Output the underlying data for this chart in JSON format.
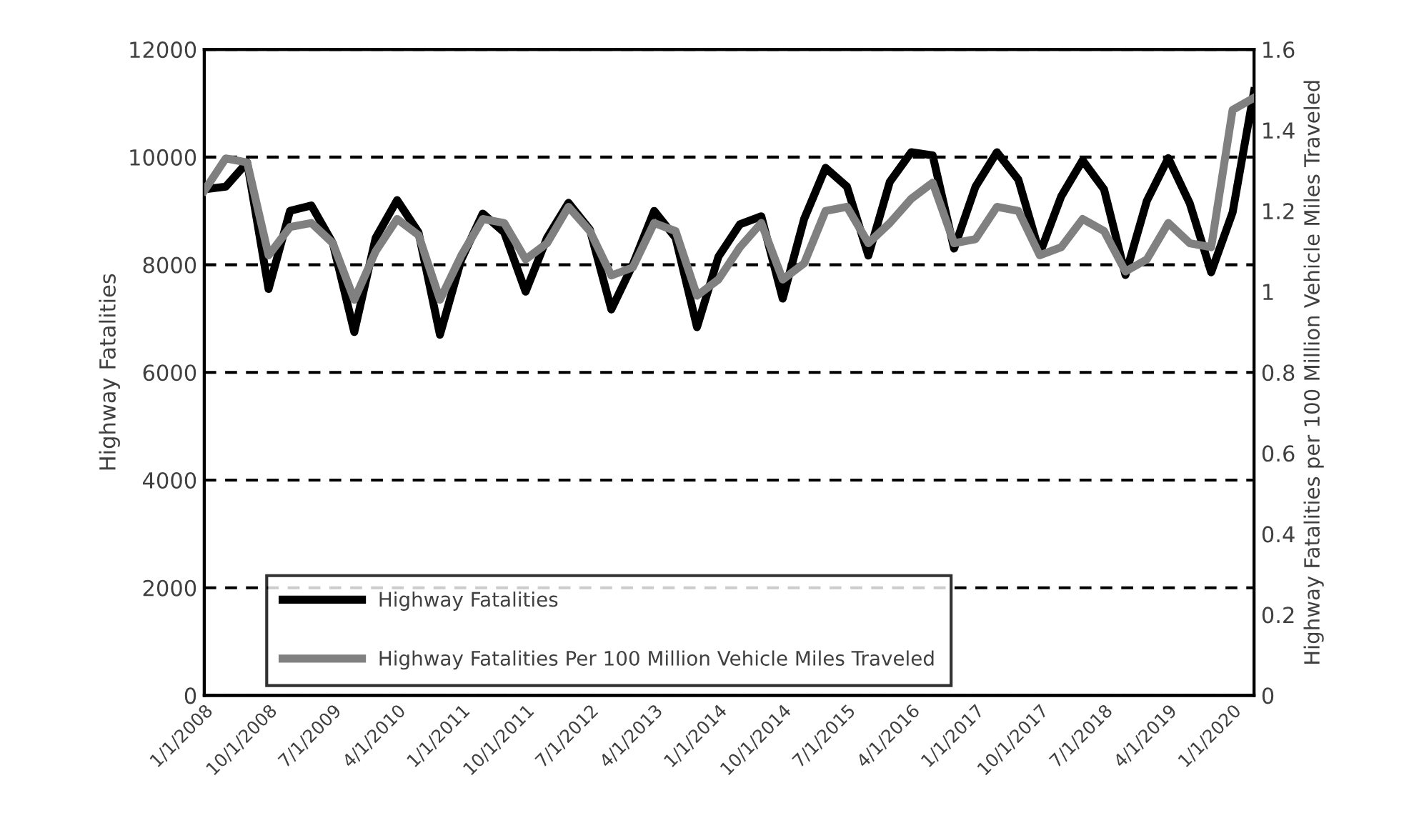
{
  "chart_data": {
    "type": "line",
    "categories": [
      "1/1/2008",
      null,
      null,
      "10/1/2008",
      null,
      null,
      "7/1/2009",
      null,
      null,
      "4/1/2010",
      null,
      null,
      "1/1/2011",
      null,
      null,
      "10/1/2011",
      null,
      null,
      "7/1/2012",
      null,
      null,
      "4/1/2013",
      null,
      null,
      "1/1/2014",
      null,
      null,
      "10/1/2014",
      null,
      null,
      "7/1/2015",
      null,
      null,
      "4/1/2016",
      null,
      null,
      "1/1/2017",
      null,
      null,
      "10/1/2017",
      null,
      null,
      "7/1/2018",
      null,
      null,
      "4/1/2019",
      null,
      null,
      "1/1/2020",
      null
    ],
    "series": [
      {
        "name": "Highway Fatalities",
        "color": "#000000",
        "values": [
          9400,
          9450,
          9900,
          7550,
          9000,
          9100,
          8400,
          6750,
          8500,
          9200,
          8600,
          6700,
          8100,
          8950,
          8600,
          7500,
          8500,
          9150,
          8650,
          7170,
          8000,
          9000,
          8500,
          6840,
          8150,
          8750,
          8900,
          7370,
          8850,
          9800,
          9450,
          8170,
          9540,
          10090,
          10030,
          8300,
          9450,
          10090,
          9580,
          8210,
          9270,
          9940,
          9400,
          7810,
          9190,
          9980,
          9140,
          7860,
          8970,
          11220
        ]
      },
      {
        "name": "Highway Fatalities Per 100 Million Vehicle Miles Traveled",
        "color": "#808080",
        "axis": "y2",
        "values": [
          1.25,
          1.33,
          1.32,
          1.09,
          1.16,
          1.17,
          1.12,
          0.98,
          1.1,
          1.18,
          1.14,
          0.98,
          1.09,
          1.18,
          1.17,
          1.08,
          1.12,
          1.21,
          1.15,
          1.04,
          1.06,
          1.17,
          1.15,
          0.99,
          1.03,
          1.11,
          1.17,
          1.03,
          1.07,
          1.2,
          1.21,
          1.12,
          1.17,
          1.23,
          1.27,
          1.12,
          1.13,
          1.21,
          1.2,
          1.09,
          1.11,
          1.18,
          1.15,
          1.05,
          1.08,
          1.17,
          1.12,
          1.11,
          1.45,
          1.48
        ]
      }
    ],
    "ylabel": "Highway Fatalities",
    "y2label": "Highway Fatalities per 100 Million Vehicle Miles Traveled",
    "ylim": [
      0,
      12000
    ],
    "yticks": [
      0,
      2000,
      4000,
      6000,
      8000,
      10000,
      12000
    ],
    "y2lim": [
      0,
      1.6
    ],
    "y2ticks": [
      0,
      {
        "value": 0.2,
        "label": "0.2"
      },
      {
        "value": 0.4,
        "label": "0.4"
      },
      {
        "value": 0.6,
        "label": "0.6"
      },
      {
        "value": 0.8,
        "label": "0.8"
      },
      1,
      {
        "value": 1.2,
        "label": "1.2"
      },
      {
        "value": 1.4,
        "label": "1.4"
      },
      {
        "value": 1.6,
        "label": "1.6"
      }
    ],
    "grid": "y",
    "line_style": "solid",
    "marker": "none",
    "legend": "bottom left"
  }
}
